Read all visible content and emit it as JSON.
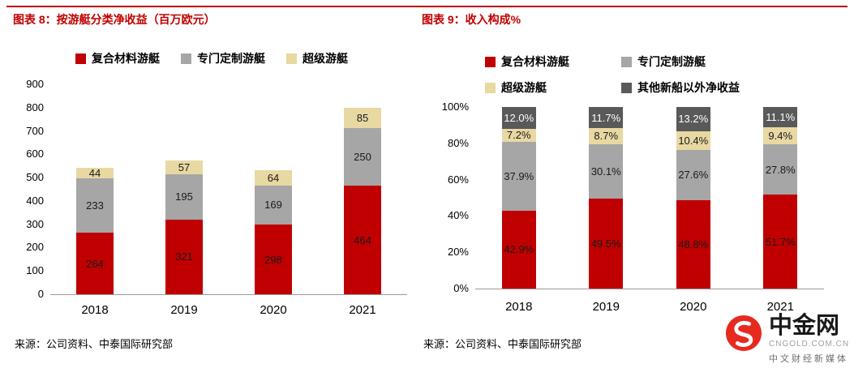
{
  "accent": {
    "red": "#C00000"
  },
  "chart_data": [
    {
      "type": "bar",
      "stacked": true,
      "title": "图表 8：按游艇分类净收益（百万欧元）",
      "source": "来源：公司资料、中泰国际研究部",
      "categories": [
        "2018",
        "2019",
        "2020",
        "2021"
      ],
      "series": [
        {
          "name": "复合材料游艇",
          "color": "#C00000",
          "label_color": "#1a1a1a",
          "values": [
            264,
            321,
            298,
            464
          ]
        },
        {
          "name": "专门定制游艇",
          "color": "#A6A6A6",
          "label_color": "#1a1a1a",
          "values": [
            233,
            195,
            169,
            250
          ]
        },
        {
          "name": "超级游艇",
          "color": "#E8D8A2",
          "label_color": "#1a1a1a",
          "values": [
            44,
            57,
            64,
            85
          ]
        }
      ],
      "ylim": [
        0,
        900
      ],
      "ytick_step": 100,
      "percent": false,
      "legend_position": "top",
      "grid": false
    },
    {
      "type": "bar",
      "stacked": true,
      "title": "图表 9：收入构成%",
      "source": "来源：公司资料、中泰国际研究部",
      "categories": [
        "2018",
        "2019",
        "2020",
        "2021"
      ],
      "series": [
        {
          "name": "复合材料游艇",
          "color": "#C00000",
          "label_color": "#1a1a1a",
          "values": [
            42.9,
            49.5,
            48.8,
            51.7
          ]
        },
        {
          "name": "专门定制游艇",
          "color": "#A6A6A6",
          "label_color": "#1a1a1a",
          "values": [
            37.9,
            30.1,
            27.6,
            27.8
          ]
        },
        {
          "name": "超级游艇",
          "color": "#E8D8A2",
          "label_color": "#1a1a1a",
          "values": [
            7.2,
            8.7,
            10.4,
            9.4
          ]
        },
        {
          "name": "其他新船以外净收益",
          "color": "#595959",
          "label_color": "#FFFFFF",
          "values": [
            12.0,
            11.7,
            13.2,
            11.1
          ]
        }
      ],
      "ylim": [
        0,
        100
      ],
      "ytick_step": 20,
      "percent": true,
      "legend_position": "top",
      "grid": false
    }
  ],
  "logo": {
    "brand": "中金网",
    "domain": "CNGOLD.COM.CN",
    "tagline": "中文财经新媒体"
  }
}
